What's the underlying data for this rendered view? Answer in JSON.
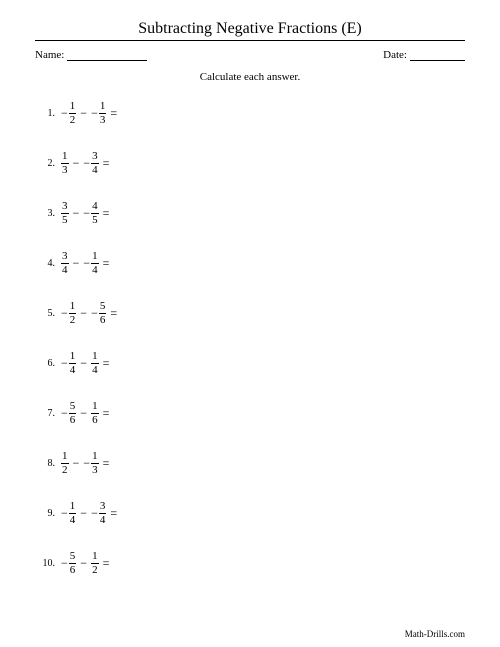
{
  "title": "Subtracting Negative Fractions (E)",
  "labels": {
    "name": "Name:",
    "date": "Date:"
  },
  "instructions": "Calculate each answer.",
  "operator": "−",
  "equals": "=",
  "problems": [
    {
      "n": "1.",
      "a": {
        "neg": true,
        "num": "1",
        "den": "2"
      },
      "b": {
        "neg": true,
        "num": "1",
        "den": "3"
      }
    },
    {
      "n": "2.",
      "a": {
        "neg": false,
        "num": "1",
        "den": "3"
      },
      "b": {
        "neg": true,
        "num": "3",
        "den": "4"
      }
    },
    {
      "n": "3.",
      "a": {
        "neg": false,
        "num": "3",
        "den": "5"
      },
      "b": {
        "neg": true,
        "num": "4",
        "den": "5"
      }
    },
    {
      "n": "4.",
      "a": {
        "neg": false,
        "num": "3",
        "den": "4"
      },
      "b": {
        "neg": true,
        "num": "1",
        "den": "4"
      }
    },
    {
      "n": "5.",
      "a": {
        "neg": true,
        "num": "1",
        "den": "2"
      },
      "b": {
        "neg": true,
        "num": "5",
        "den": "6"
      }
    },
    {
      "n": "6.",
      "a": {
        "neg": true,
        "num": "1",
        "den": "4"
      },
      "b": {
        "neg": false,
        "num": "1",
        "den": "4"
      }
    },
    {
      "n": "7.",
      "a": {
        "neg": true,
        "num": "5",
        "den": "6"
      },
      "b": {
        "neg": false,
        "num": "1",
        "den": "6"
      }
    },
    {
      "n": "8.",
      "a": {
        "neg": false,
        "num": "1",
        "den": "2"
      },
      "b": {
        "neg": true,
        "num": "1",
        "den": "3"
      }
    },
    {
      "n": "9.",
      "a": {
        "neg": true,
        "num": "1",
        "den": "4"
      },
      "b": {
        "neg": true,
        "num": "3",
        "den": "4"
      }
    },
    {
      "n": "10.",
      "a": {
        "neg": true,
        "num": "5",
        "den": "6"
      },
      "b": {
        "neg": false,
        "num": "1",
        "den": "2"
      }
    }
  ],
  "footer": "Math-Drills.com"
}
